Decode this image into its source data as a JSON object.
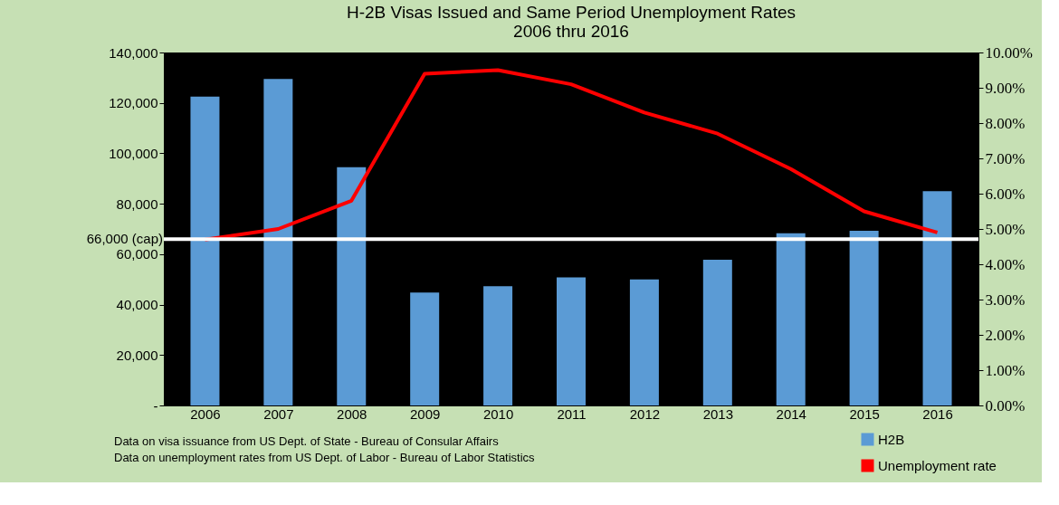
{
  "chart_data": {
    "type": "bar",
    "title": [
      "H-2B Visas Issued and Same Period Unemployment Rates",
      "2006 thru 2016"
    ],
    "categories": [
      "2006",
      "2007",
      "2008",
      "2009",
      "2010",
      "2011",
      "2012",
      "2013",
      "2014",
      "2015",
      "2016"
    ],
    "series": [
      {
        "name": "H2B",
        "color": "#5b9bd5",
        "values": [
          122500,
          129500,
          94500,
          44800,
          47300,
          50800,
          50000,
          57800,
          68300,
          69300,
          85000
        ]
      },
      {
        "name": "Unemployment rate",
        "type": "line",
        "axis": "y2",
        "color": "#ff0000",
        "values": [
          4.7,
          5.0,
          5.8,
          9.4,
          9.5,
          9.1,
          8.3,
          7.7,
          6.7,
          5.5,
          4.9
        ]
      }
    ],
    "ylim": [
      0,
      140000
    ],
    "yticks": [
      {
        "value": 0,
        "label": "-"
      },
      {
        "value": 20000,
        "label": "20,000"
      },
      {
        "value": 40000,
        "label": "40,000"
      },
      {
        "value": 60000,
        "label": "60,000"
      },
      {
        "value": 80000,
        "label": "80,000"
      },
      {
        "value": 100000,
        "label": "100,000"
      },
      {
        "value": 120000,
        "label": "120,000"
      },
      {
        "value": 140000,
        "label": "140,000"
      }
    ],
    "y2lim": [
      0,
      10
    ],
    "y2ticks": [
      {
        "value": 0,
        "label": "0.00%"
      },
      {
        "value": 1,
        "label": "1.00%"
      },
      {
        "value": 2,
        "label": "2.00%"
      },
      {
        "value": 3,
        "label": "3.00%"
      },
      {
        "value": 4,
        "label": "4.00%"
      },
      {
        "value": 5,
        "label": "5.00%"
      },
      {
        "value": 6,
        "label": "6.00%"
      },
      {
        "value": 7,
        "label": "7.00%"
      },
      {
        "value": 8,
        "label": "8.00%"
      },
      {
        "value": 9,
        "label": "9.00%"
      },
      {
        "value": 10,
        "label": "10.00%"
      }
    ],
    "ref_lines": [
      {
        "axis": "y",
        "value": 66000,
        "label": "66,000 (cap)",
        "color": "#ffffff"
      }
    ],
    "annotations": [
      "Data on visa issuance from US Dept. of State - Bureau of Consular Affairs",
      "Data on unemployment rates from US Dept. of Labor - Bureau of Labor Statistics"
    ],
    "legend": "bottom right",
    "grid": false
  }
}
